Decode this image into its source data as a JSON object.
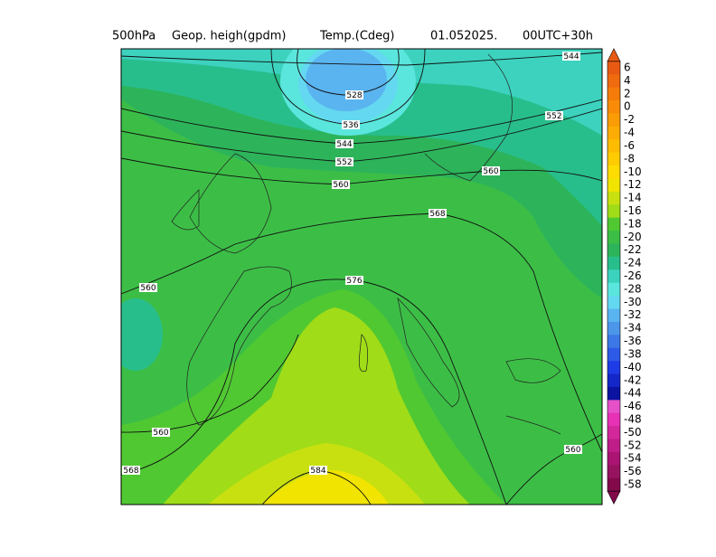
{
  "header": {
    "parts": [
      "500hPa",
      "Geop. heigh(gpdm)",
      "Temp.(Cdeg)",
      "01.052025.",
      "00UTC+30h"
    ]
  },
  "contour_labels": [
    "544",
    "528",
    "536",
    "544",
    "552",
    "560",
    "552",
    "560",
    "568",
    "576",
    "560",
    "560",
    "568",
    "584",
    "560"
  ],
  "colorbar": {
    "labels": [
      6,
      4,
      2,
      0,
      -2,
      -4,
      -6,
      -8,
      -10,
      -12,
      -14,
      -16,
      -18,
      -20,
      -22,
      -24,
      -26,
      -28,
      -30,
      -32,
      -34,
      -36,
      -38,
      -40,
      -42,
      -44,
      -46,
      -48,
      -50,
      -52,
      -54,
      -56,
      -58
    ],
    "colors": [
      "#e85a14",
      "#f06a10",
      "#f57c0a",
      "#f88c08",
      "#fa9c06",
      "#fcac04",
      "#fdbc02",
      "#fecc00",
      "#fedc00",
      "#f0e400",
      "#c8e010",
      "#a0dc18",
      "#50c832",
      "#3cbe46",
      "#2db45a",
      "#28be8c",
      "#3cd2be",
      "#5ae6dc",
      "#64d8f0",
      "#5ab4f0",
      "#4c96ea",
      "#3c78e6",
      "#2d5ae6",
      "#1e3ce6",
      "#1428c8",
      "#0a14a0",
      "#e650c8",
      "#e632b4",
      "#d2289b",
      "#be1e87",
      "#aa1473",
      "#96145f",
      "#820a4b"
    ]
  }
}
